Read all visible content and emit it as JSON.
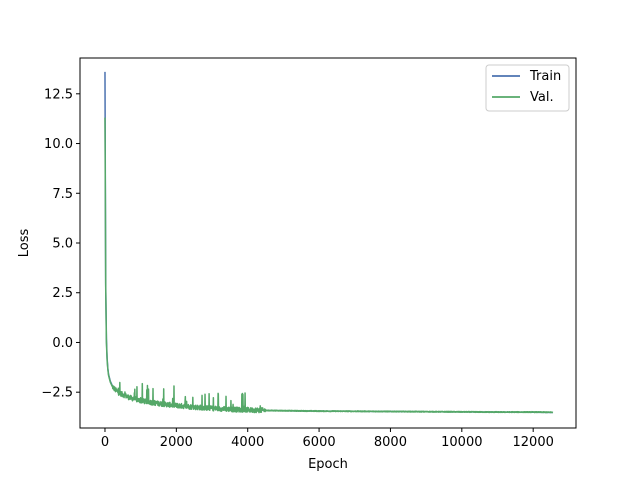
{
  "chart_data": {
    "type": "line",
    "title": "",
    "xlabel": "Epoch",
    "ylabel": "Loss",
    "xlim": [
      -700,
      13200
    ],
    "ylim": [
      -4.3,
      14.3
    ],
    "xticks": [
      0,
      2000,
      4000,
      6000,
      8000,
      10000,
      12000
    ],
    "xtick_labels": [
      "0",
      "2000",
      "4000",
      "6000",
      "8000",
      "10000",
      "12000"
    ],
    "yticks": [
      -2.5,
      0.0,
      2.5,
      5.0,
      7.5,
      10.0,
      12.5
    ],
    "ytick_labels": [
      "−2.5",
      "0.0",
      "2.5",
      "5.0",
      "7.5",
      "10.0",
      "12.5"
    ],
    "grid": false,
    "legend_position": "top-right",
    "series": [
      {
        "name": "Train",
        "color": "#4c72b0",
        "x": [
          0,
          10,
          20,
          40,
          60,
          80,
          100,
          150,
          200,
          300,
          400,
          500,
          700,
          1000,
          1500,
          2000,
          2500,
          3000,
          3500,
          4000,
          4400,
          4500,
          5000,
          6000,
          7000,
          8000,
          9000,
          10000,
          11000,
          12000,
          12550
        ],
        "values": [
          13.6,
          8.0,
          3.0,
          0.2,
          -0.8,
          -1.3,
          -1.6,
          -1.95,
          -2.15,
          -2.35,
          -2.5,
          -2.6,
          -2.75,
          -2.9,
          -3.05,
          -3.15,
          -3.23,
          -3.3,
          -3.35,
          -3.38,
          -3.4,
          -3.42,
          -3.43,
          -3.45,
          -3.46,
          -3.47,
          -3.48,
          -3.49,
          -3.5,
          -3.51,
          -3.52
        ]
      },
      {
        "name": "Val.",
        "color": "#55a868",
        "x": [
          0,
          10,
          20,
          40,
          60,
          80,
          100,
          150,
          200,
          300,
          400,
          500,
          700,
          1000,
          1500,
          2000,
          2500,
          3000,
          3500,
          4000,
          4400,
          4500,
          5000,
          6000,
          7000,
          8000,
          9000,
          10000,
          11000,
          12000,
          12550
        ],
        "values": [
          11.3,
          7.5,
          2.8,
          0.0,
          -0.9,
          -1.35,
          -1.65,
          -2.0,
          -2.2,
          -2.4,
          -2.55,
          -2.62,
          -2.78,
          -2.93,
          -3.07,
          -3.17,
          -3.25,
          -3.31,
          -3.36,
          -3.39,
          -3.41,
          -3.42,
          -3.43,
          -3.45,
          -3.46,
          -3.47,
          -3.48,
          -3.49,
          -3.5,
          -3.5,
          -3.51
        ],
        "noise_until_x": 4500
      }
    ]
  }
}
